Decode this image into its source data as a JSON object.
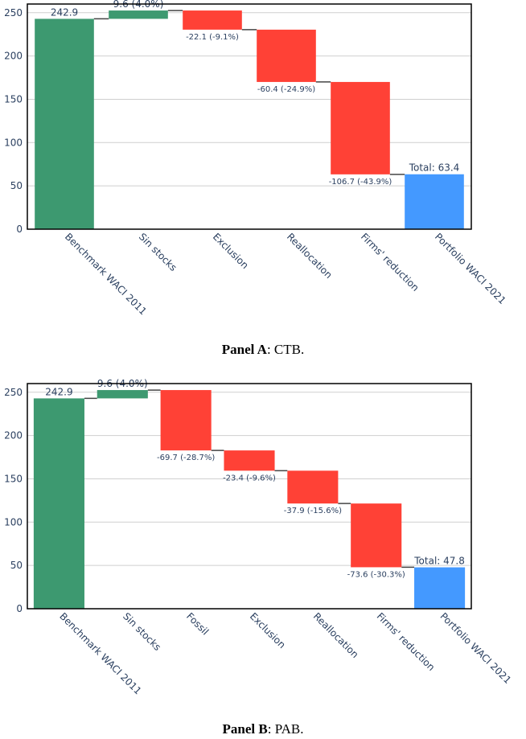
{
  "colors": {
    "increase": "#3d9970",
    "decrease": "#ff4136",
    "total": "#4499ff",
    "grid": "#cfcfcf",
    "connector": "#444444",
    "frame": "#000000"
  },
  "chart_data": [
    {
      "type": "waterfall",
      "panel": "A",
      "caption_bold": "Panel A",
      "caption_rest": ": CTB.",
      "ylim": [
        0,
        260
      ],
      "yticks": [
        0,
        50,
        100,
        150,
        200,
        250
      ],
      "ytick_labels": [
        "0",
        "50",
        "100",
        "150",
        "200",
        "250"
      ],
      "categories": [
        "Benchmark WACI 2011",
        "Sin stocks",
        "Exclusion",
        "Reallocation",
        "Firms' reduction",
        "Portfolio WACI 2021"
      ],
      "measures": [
        "absolute",
        "relative",
        "relative",
        "relative",
        "relative",
        "total"
      ],
      "values": [
        242.9,
        9.6,
        -22.1,
        -60.4,
        -106.7,
        63.4
      ],
      "text": [
        "242.9",
        "9.6 (4.0%)",
        "-22.1 (-9.1%)",
        "-60.4 (-24.9%)",
        "-106.7 (-43.9%)",
        "Total: 63.4"
      ]
    },
    {
      "type": "waterfall",
      "panel": "B",
      "caption_bold": "Panel B",
      "caption_rest": ": PAB.",
      "ylim": [
        0,
        260
      ],
      "yticks": [
        0,
        50,
        100,
        150,
        200,
        250
      ],
      "ytick_labels": [
        "0",
        "50",
        "100",
        "150",
        "200",
        "250"
      ],
      "categories": [
        "Benchmark WACI 2011",
        "Sin stocks",
        "Fossil",
        "Exclusion",
        "Reallocation",
        "Firms' reduction",
        "Portfolio WACI 2021"
      ],
      "measures": [
        "absolute",
        "relative",
        "relative",
        "relative",
        "relative",
        "relative",
        "total"
      ],
      "values": [
        242.9,
        9.6,
        -69.7,
        -23.4,
        -37.9,
        -73.6,
        47.8
      ],
      "text": [
        "242.9",
        "9.6 (4.0%)",
        "-69.7 (-28.7%)",
        "-23.4 (-9.6%)",
        "-37.9 (-15.6%)",
        "-73.6 (-30.3%)",
        "Total: 47.8"
      ]
    }
  ]
}
